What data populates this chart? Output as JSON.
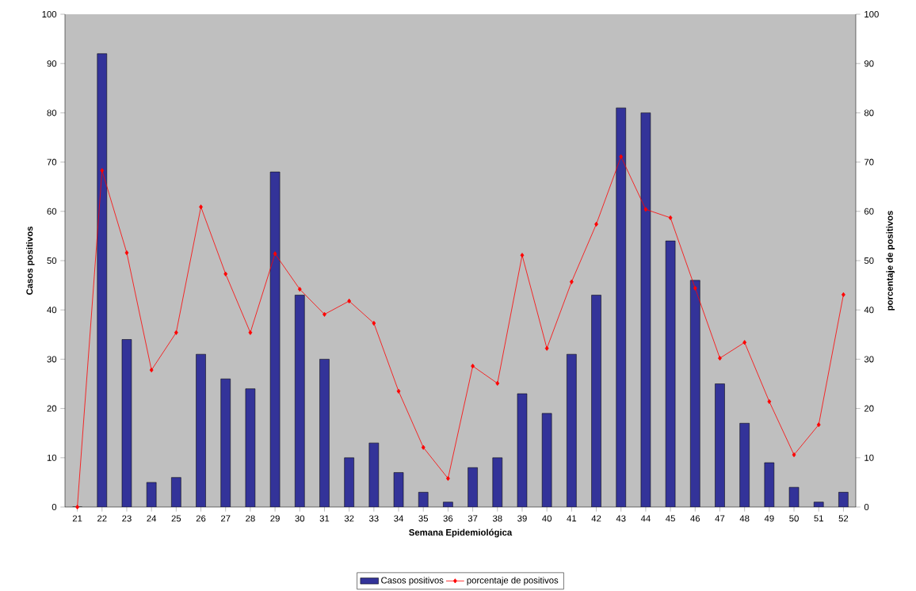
{
  "chart_data": {
    "type": "bar",
    "xlabel": "Semana Epidemiológica",
    "ylabel": "Casos positivos",
    "y2label": "porcentaje de positivos",
    "categories": [
      "21",
      "22",
      "23",
      "24",
      "25",
      "26",
      "27",
      "28",
      "29",
      "30",
      "31",
      "32",
      "33",
      "34",
      "35",
      "36",
      "37",
      "38",
      "39",
      "40",
      "41",
      "42",
      "43",
      "44",
      "45",
      "46",
      "47",
      "48",
      "49",
      "50",
      "51",
      "52"
    ],
    "series": [
      {
        "name": "Casos positivos",
        "color": "#333399",
        "values": [
          0,
          92,
          34,
          5,
          6,
          31,
          26,
          24,
          68,
          43,
          30,
          10,
          13,
          7,
          3,
          1,
          8,
          10,
          23,
          19,
          31,
          43,
          81,
          80,
          54,
          46,
          25,
          17,
          9,
          4,
          1,
          3
        ]
      },
      {
        "name": "porcentaje de positivos",
        "type": "line",
        "axis": "y2",
        "color": "#ff0000",
        "marker": "diamond",
        "values": [
          0,
          68.3,
          51.6,
          27.8,
          35.4,
          60.9,
          47.3,
          35.4,
          51.4,
          44.2,
          39.1,
          41.8,
          37.3,
          23.5,
          12.1,
          5.8,
          28.6,
          25.1,
          51.1,
          32.2,
          45.7,
          57.4,
          71.1,
          60.4,
          58.7,
          44.4,
          30.2,
          33.4,
          21.4,
          10.6,
          16.7,
          43.1
        ]
      }
    ],
    "ylim": [
      0,
      100
    ],
    "yticks": [
      0,
      10,
      20,
      30,
      40,
      50,
      60,
      70,
      80,
      90,
      100
    ],
    "y2lim": [
      0,
      100
    ],
    "y2ticks": [
      0,
      10,
      20,
      30,
      40,
      50,
      60,
      70,
      80,
      90,
      100
    ],
    "legend": "bottom"
  }
}
